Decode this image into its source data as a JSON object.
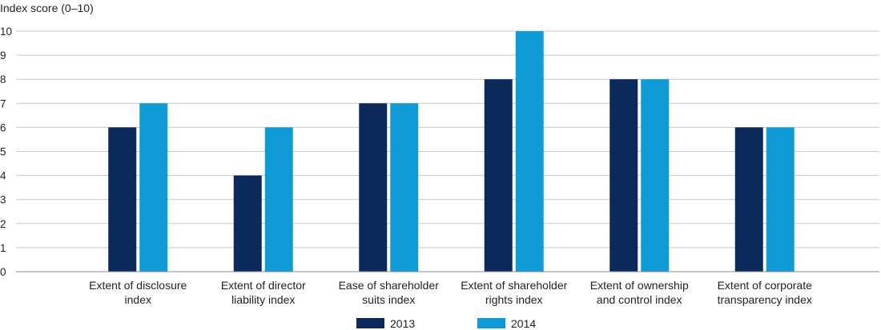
{
  "chart_data": {
    "type": "bar",
    "ylabel": "Index score (0–10)",
    "xlabel": "",
    "title": "",
    "ylim": [
      0,
      10
    ],
    "yticks": [
      0,
      1,
      2,
      3,
      4,
      5,
      6,
      7,
      8,
      9,
      10
    ],
    "grid": true,
    "legend_position": "bottom",
    "categories": [
      [
        "Extent of disclosure",
        "index"
      ],
      [
        "Extent of director",
        "liability index"
      ],
      [
        "Ease of shareholder",
        "suits index"
      ],
      [
        "Extent of shareholder",
        "rights index"
      ],
      [
        "Extent of ownership",
        "and control index"
      ],
      [
        "Extent of corporate",
        "transparency index"
      ]
    ],
    "series": [
      {
        "name": "2013",
        "color": "#0b2a5b",
        "values": [
          6,
          4,
          7,
          8,
          8,
          6
        ]
      },
      {
        "name": "2014",
        "color": "#0f9bd7",
        "values": [
          7,
          6,
          7,
          10,
          8,
          6
        ]
      }
    ]
  }
}
